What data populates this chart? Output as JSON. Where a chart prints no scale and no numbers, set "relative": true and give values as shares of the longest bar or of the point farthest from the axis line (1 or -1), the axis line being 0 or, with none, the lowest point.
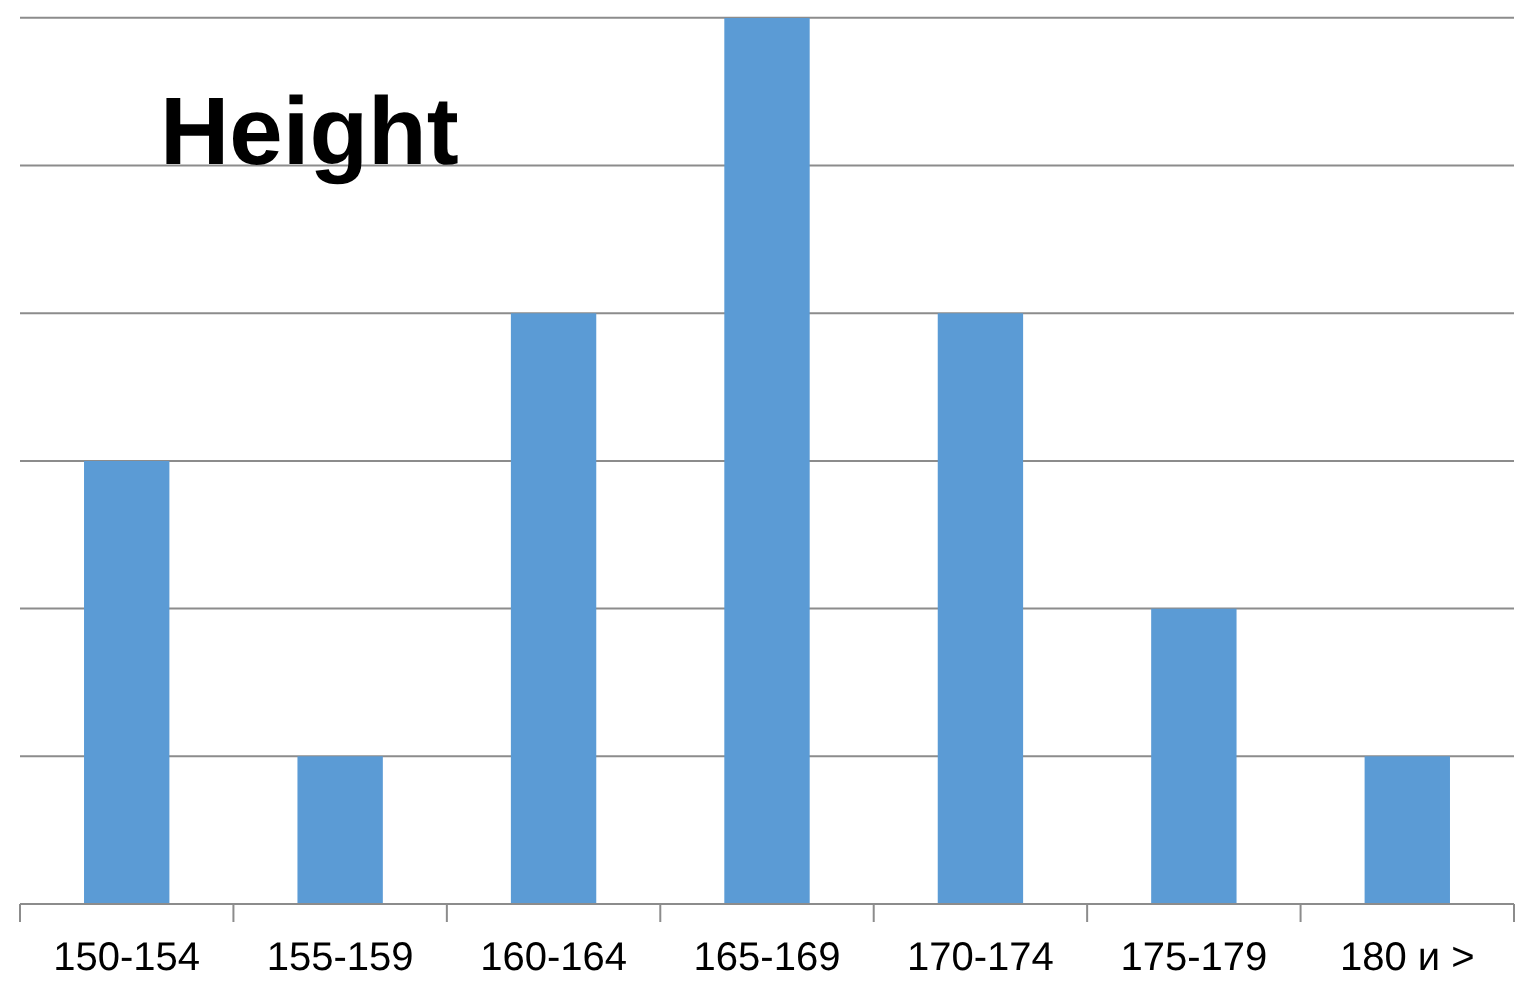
{
  "chart_data": {
    "type": "bar",
    "title": "Height",
    "categories": [
      "150-154",
      "155-159",
      "160-164",
      "165-169",
      "170-174",
      "175-179",
      "180 и >"
    ],
    "values": [
      0.5,
      0.1667,
      0.6667,
      1,
      0.6667,
      0.3333,
      0.1667
    ],
    "color": "#5b9bd5",
    "relative": true,
    "grid": "y"
  }
}
